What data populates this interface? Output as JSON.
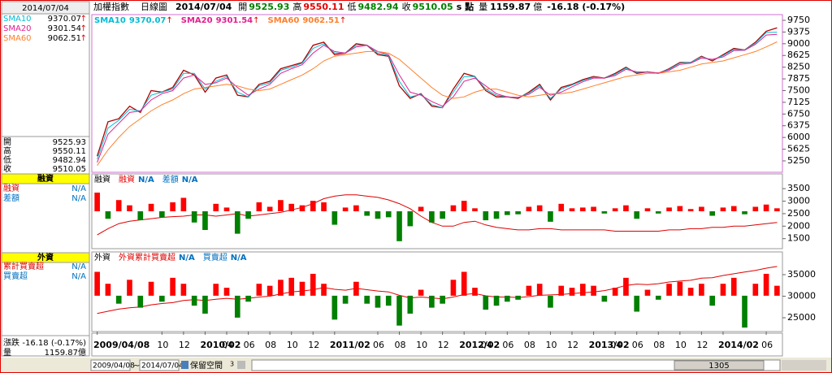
{
  "header": {
    "name": "加權指數",
    "period": "日線圖",
    "date": "2014/07/04",
    "open_label": "開",
    "open": 9525.93,
    "high_label": "高",
    "high": 9550.11,
    "low_label": "低",
    "low": 9482.94,
    "close_label": "收",
    "close": 9510.05,
    "unit": "s 點",
    "volume_label": "量",
    "volume": 1159.87,
    "volume_unit": "億",
    "change_label": "漲跌",
    "change": "-16.18 (-0.17%)"
  },
  "toolbar": {
    "from": "2009/04/08",
    "sep": "~",
    "to": "2014/07/04",
    "reserve": "保留空間",
    "reserve_value": "3",
    "scroll": "1305"
  },
  "chart_data": [
    {
      "type": "line",
      "ylim": [
        4885,
        9932
      ],
      "yticks": [
        5250,
        5625,
        6000,
        6375,
        6750,
        7125,
        7500,
        7875,
        8250,
        8625,
        9000,
        9375,
        9750
      ],
      "categories": [
        "2009/04/08",
        null,
        null,
        null,
        null,
        null,
        "10",
        null,
        "12",
        null,
        "2010/02",
        null,
        "04",
        null,
        "06",
        null,
        "08",
        null,
        "10",
        null,
        "12",
        null,
        "2011/02",
        null,
        null,
        null,
        "06",
        null,
        "08",
        null,
        "10",
        null,
        "12",
        null,
        "2012/02",
        null,
        "04",
        null,
        "06",
        null,
        "08",
        null,
        "10",
        null,
        "12",
        null,
        "2013/02",
        null,
        "04",
        null,
        "06",
        null,
        "08",
        null,
        "10",
        null,
        "12",
        null,
        "2014/02",
        null,
        null,
        null,
        "06",
        null
      ],
      "series": [
        {
          "name": "加權指數",
          "color": "#b00000",
          "values": [
            5400,
            6500,
            6600,
            7000,
            6800,
            7500,
            7450,
            7600,
            8150,
            8000,
            7450,
            7900,
            8000,
            7350,
            7300,
            7700,
            7800,
            8200,
            8300,
            8400,
            8950,
            9050,
            8650,
            8700,
            9000,
            8950,
            8650,
            8600,
            7650,
            7250,
            7400,
            7000,
            6950,
            7550,
            8050,
            7950,
            7500,
            7300,
            7300,
            7250,
            7450,
            7700,
            7200,
            7600,
            7700,
            7850,
            7950,
            7900,
            8050,
            8250,
            8050,
            8100,
            8050,
            8200,
            8400,
            8400,
            8600,
            8450,
            8650,
            8850,
            8800,
            9050,
            9400,
            9510
          ]
        },
        {
          "name": "SMA10",
          "latest": 9370.07,
          "arrow": "↑",
          "color": "#00bcd4",
          "values": [
            5300,
            6300,
            6550,
            6900,
            6850,
            7350,
            7450,
            7550,
            8050,
            8050,
            7550,
            7800,
            7950,
            7450,
            7300,
            7650,
            7750,
            8150,
            8250,
            8380,
            8850,
            9000,
            8700,
            8700,
            8950,
            8950,
            8700,
            8620,
            7800,
            7300,
            7380,
            7050,
            6950,
            7450,
            7950,
            7950,
            7550,
            7350,
            7300,
            7270,
            7420,
            7650,
            7250,
            7550,
            7680,
            7820,
            7930,
            7900,
            8020,
            8220,
            8080,
            8100,
            8060,
            8180,
            8380,
            8400,
            8580,
            8480,
            8620,
            8820,
            8800,
            9020,
            9360,
            9370
          ]
        },
        {
          "name": "SMA20",
          "latest": 9301.54,
          "arrow": "↑",
          "color": "#e0208f",
          "values": [
            5200,
            6100,
            6450,
            6800,
            6850,
            7200,
            7400,
            7500,
            7900,
            8000,
            7700,
            7750,
            7900,
            7600,
            7350,
            7550,
            7700,
            8050,
            8200,
            8330,
            8700,
            8950,
            8750,
            8700,
            8900,
            8950,
            8750,
            8650,
            8000,
            7450,
            7350,
            7150,
            7000,
            7300,
            7800,
            7900,
            7650,
            7400,
            7300,
            7280,
            7380,
            7600,
            7350,
            7450,
            7620,
            7780,
            7900,
            7900,
            7980,
            8180,
            8100,
            8090,
            8070,
            8150,
            8340,
            8380,
            8540,
            8500,
            8580,
            8780,
            8790,
            8980,
            9280,
            9300
          ]
        },
        {
          "name": "SMA60",
          "latest": 9062.51,
          "arrow": "↑",
          "color": "#ff7f2a",
          "values": [
            5100,
            5600,
            6000,
            6350,
            6600,
            6850,
            7050,
            7200,
            7400,
            7550,
            7600,
            7650,
            7700,
            7650,
            7550,
            7500,
            7550,
            7700,
            7850,
            8000,
            8200,
            8450,
            8600,
            8650,
            8700,
            8750,
            8750,
            8700,
            8500,
            8200,
            7900,
            7600,
            7350,
            7250,
            7300,
            7450,
            7550,
            7550,
            7450,
            7350,
            7300,
            7350,
            7400,
            7400,
            7450,
            7550,
            7650,
            7750,
            7850,
            7950,
            8000,
            8050,
            8050,
            8100,
            8150,
            8250,
            8350,
            8400,
            8450,
            8550,
            8650,
            8750,
            8900,
            9060
          ]
        }
      ]
    },
    {
      "type": "combo",
      "title": "融資",
      "ylim": [
        1100,
        4090
      ],
      "yticks": [
        1500,
        2000,
        2500,
        3000,
        3500
      ],
      "y2lim": [
        -50,
        50
      ],
      "series": [
        {
          "name": "融資",
          "latest": "N/A",
          "color": "#e00000",
          "values": [
            1650,
            1900,
            2100,
            2200,
            2250,
            2300,
            2350,
            2380,
            2400,
            2450,
            2450,
            2400,
            2450,
            2500,
            2400,
            2450,
            2500,
            2550,
            2650,
            2750,
            2900,
            3100,
            3200,
            3250,
            3250,
            3200,
            3150,
            3050,
            2900,
            2700,
            2400,
            2150,
            2000,
            2000,
            2150,
            2200,
            2050,
            1950,
            1900,
            1850,
            1850,
            1900,
            1900,
            1850,
            1850,
            1850,
            1850,
            1850,
            1800,
            1800,
            1800,
            1800,
            1800,
            1850,
            1850,
            1900,
            1900,
            1950,
            1950,
            2000,
            2000,
            2050,
            2100,
            2150
          ]
        },
        {
          "name": "差額",
          "latest": "N/A",
          "color": "#0070c0",
          "up_color": "#ff0000",
          "down_color": "#008000",
          "axis": "y2",
          "values": [
            25,
            -10,
            15,
            8,
            -12,
            10,
            -8,
            12,
            18,
            -15,
            -25,
            10,
            5,
            -30,
            -10,
            12,
            6,
            15,
            10,
            8,
            14,
            12,
            -18,
            5,
            8,
            -6,
            -10,
            -8,
            -40,
            -20,
            6,
            -15,
            -10,
            8,
            14,
            4,
            -12,
            -10,
            -5,
            -4,
            6,
            8,
            -14,
            10,
            4,
            5,
            6,
            -3,
            4,
            8,
            -10,
            4,
            -3,
            5,
            7,
            3,
            6,
            -6,
            5,
            7,
            -4,
            6,
            9,
            4
          ]
        }
      ]
    },
    {
      "type": "combo",
      "title": "外資",
      "ylim": [
        21790,
        40280
      ],
      "yticks": [
        25000,
        30000,
        35000
      ],
      "y2lim": [
        -180,
        220
      ],
      "series": [
        {
          "name": "外資累計買賣超",
          "sidebar_name": "累計買賣超",
          "latest": "N/A",
          "color": "#e00000",
          "values": [
            26000,
            26500,
            27000,
            27300,
            27500,
            28000,
            28300,
            28500,
            29000,
            29200,
            29000,
            29300,
            29500,
            29300,
            29500,
            29800,
            30000,
            30500,
            31000,
            31200,
            31500,
            32000,
            31600,
            31400,
            31800,
            31500,
            31200,
            31000,
            30200,
            29600,
            29800,
            29600,
            29400,
            29800,
            30400,
            30600,
            30100,
            29800,
            29800,
            29700,
            29900,
            30200,
            30300,
            30400,
            30600,
            30800,
            31000,
            31300,
            31800,
            32500,
            32800,
            32700,
            32900,
            33300,
            33500,
            33700,
            34200,
            34300,
            34800,
            35200,
            35600,
            36000,
            36500,
            36900
          ]
        },
        {
          "name": "買賣超",
          "latest": "N/A",
          "color": "#0070c0",
          "up_color": "#ff0000",
          "down_color": "#008000",
          "axis": "y2",
          "values": [
            120,
            60,
            -40,
            80,
            -60,
            70,
            -30,
            90,
            60,
            -50,
            -90,
            60,
            40,
            -110,
            -30,
            60,
            50,
            80,
            90,
            70,
            110,
            60,
            -120,
            -40,
            70,
            -40,
            -60,
            -50,
            -150,
            -90,
            30,
            -60,
            -40,
            80,
            120,
            40,
            -70,
            -50,
            -30,
            -20,
            50,
            60,
            -60,
            50,
            40,
            60,
            50,
            -30,
            40,
            90,
            -80,
            30,
            -20,
            60,
            70,
            40,
            60,
            -50,
            60,
            90,
            -160,
            60,
            110,
            50
          ]
        }
      ]
    }
  ]
}
